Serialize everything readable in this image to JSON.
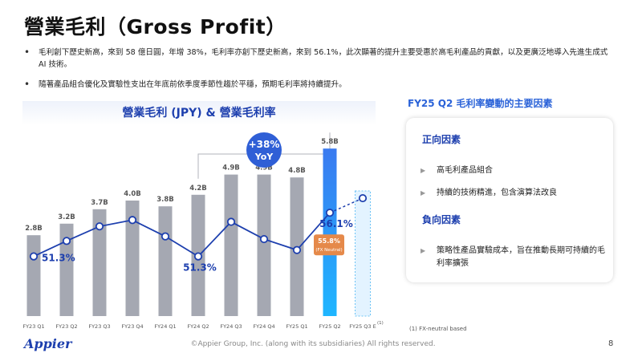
{
  "title": "營業毛利（Gross Profit）",
  "bullets": [
    "毛利創下歷史新高，來到 58 億日圓，年增 38%，毛利率亦創下歷史新高，來到 56.1%，此次顯著的提升主要受惠於高毛利產品的貢獻，以及更廣泛地導入先進生成式 AI 技術。",
    "隨著產品組合優化及實驗性支出在年底前依季度季節性趨於平穩，預期毛利率將持續提升。"
  ],
  "chart_data": {
    "type": "bar",
    "title": "營業毛利 (JPY) & 營業毛利率",
    "categories": [
      "FY23 Q1",
      "FY23 Q2",
      "FY23 Q3",
      "FY23 Q4",
      "FY24 Q1",
      "FY24 Q2",
      "FY24 Q3",
      "FY24 Q4",
      "FY25 Q1",
      "FY25 Q2",
      "FY25 Q3 E"
    ],
    "bar_values": [
      2.8,
      3.2,
      3.7,
      4.0,
      3.8,
      4.2,
      4.9,
      4.9,
      4.8,
      5.8,
      null
    ],
    "bar_labels": [
      "2.8B",
      "3.2B",
      "3.7B",
      "4.0B",
      "3.8B",
      "4.2B",
      "4.9B",
      "4.9B",
      "4.8B",
      "5.8B",
      ""
    ],
    "margin_values": [
      51.3,
      53.0,
      54.6,
      55.3,
      53.5,
      51.3,
      55.1,
      53.2,
      52.0,
      56.1,
      57.7
    ],
    "margin_labels": [
      {
        "index": 0,
        "text": "51.3%"
      },
      {
        "index": 5,
        "text": "51.3%"
      },
      {
        "index": 9,
        "text": "56.1%"
      }
    ],
    "fx_neutral": {
      "index": 9,
      "value": "55.8%",
      "note": "(FX Neutral)"
    },
    "yoy_badge": {
      "line1": "+38%",
      "line2": "YoY"
    },
    "footnote_marker": "(1)",
    "colors": {
      "bar": "#a5a8b2",
      "bar_highlight_top": "#3a7af0",
      "bar_highlight_bottom": "#1fb6ff",
      "line": "#1d3fae",
      "estimate_fill": "#e3f3ff",
      "estimate_border": "#6cc3f5",
      "badge": "#2f5fd6",
      "fx": "#e5894a"
    }
  },
  "panel": {
    "title": "FY25 Q2 毛利率變動的主要因素",
    "positive_header": "正向因素",
    "positive_items": [
      "高毛利產品組合",
      "持續的技術精進，包含演算法改良"
    ],
    "negative_header": "負向因素",
    "negative_items": [
      "策略性產品實驗成本，旨在推動長期可持續的毛利率擴張"
    ]
  },
  "footnote": "(1) FX-neutral based",
  "footer": {
    "logo": "Appier",
    "copyright": "©Appier Group, Inc. (along with its subsidiaries) All rights reserved.",
    "page": "8"
  }
}
